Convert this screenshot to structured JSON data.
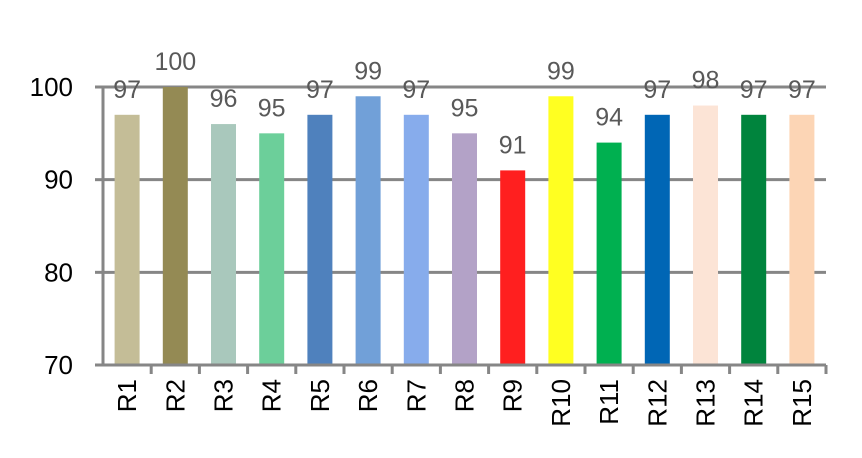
{
  "chart_data": {
    "type": "bar",
    "categories": [
      "R1",
      "R2",
      "R3",
      "R4",
      "R5",
      "R6",
      "R7",
      "R8",
      "R9",
      "R10",
      "R11",
      "R12",
      "R13",
      "R14",
      "R15"
    ],
    "values": [
      97,
      100,
      96,
      95,
      97,
      99,
      97,
      95,
      91,
      99,
      94,
      97,
      98,
      97,
      97
    ],
    "colors": [
      "#c4bd97",
      "#948a54",
      "#a9c8bc",
      "#6ccf9a",
      "#4f81bd",
      "#71a0d8",
      "#87acec",
      "#b3a2c7",
      "#ff1f1f",
      "#ffff21",
      "#00b050",
      "#0066b5",
      "#fce4d6",
      "#00843d",
      "#fcd5b5"
    ],
    "ylim": [
      70,
      100
    ],
    "yticks": [
      70,
      80,
      90,
      100
    ],
    "ytick_labels": [
      "70",
      "80",
      "90",
      "100"
    ],
    "data_labels": [
      "97",
      "100",
      "96",
      "95",
      "97",
      "99",
      "97",
      "95",
      "91",
      "99",
      "94",
      "97",
      "98",
      "97",
      "97"
    ],
    "grid": true,
    "title": "",
    "xlabel": "",
    "ylabel": ""
  }
}
